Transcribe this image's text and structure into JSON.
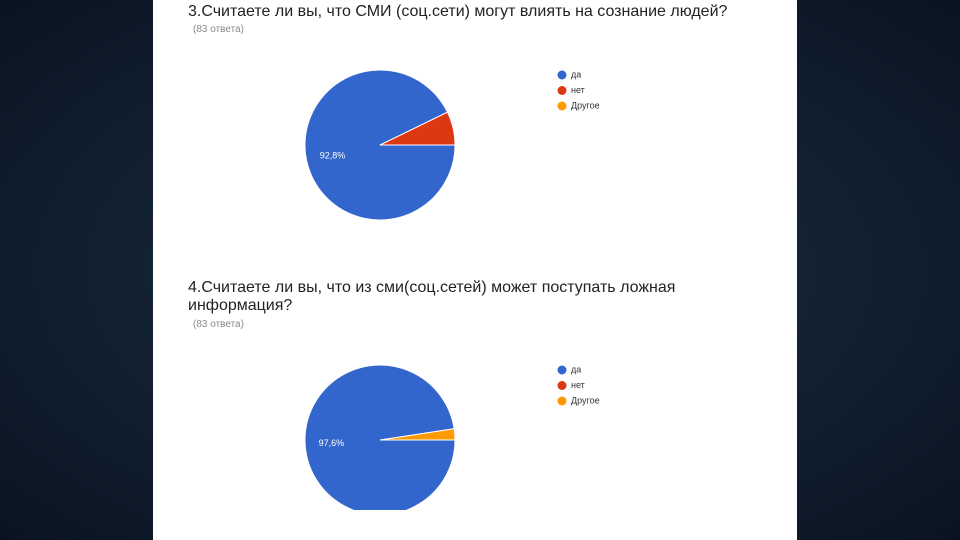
{
  "chart_data": [
    {
      "type": "pie",
      "title": "3.Считаете ли вы, что СМИ (соц.сети) могут влиять на сознание людей?",
      "subtitle": "(83 ответа)",
      "categories": [
        "да",
        "нет",
        "Другое"
      ],
      "values": [
        92.8,
        7.2,
        0
      ],
      "value_labels": [
        "92,8%",
        null,
        null
      ],
      "colors": [
        "#3366cc",
        "#dc3912",
        "#ff9900"
      ]
    },
    {
      "type": "pie",
      "title": "4.Считаете ли вы, что из сми(соц.сетей) может поступать ложная информация?",
      "subtitle": "(83 ответа)",
      "categories": [
        "да",
        "нет",
        "Другое"
      ],
      "values": [
        97.6,
        0,
        2.4
      ],
      "value_labels": [
        "97,6%",
        null,
        null
      ],
      "colors": [
        "#3366cc",
        "#dc3912",
        "#ff9900"
      ]
    }
  ]
}
